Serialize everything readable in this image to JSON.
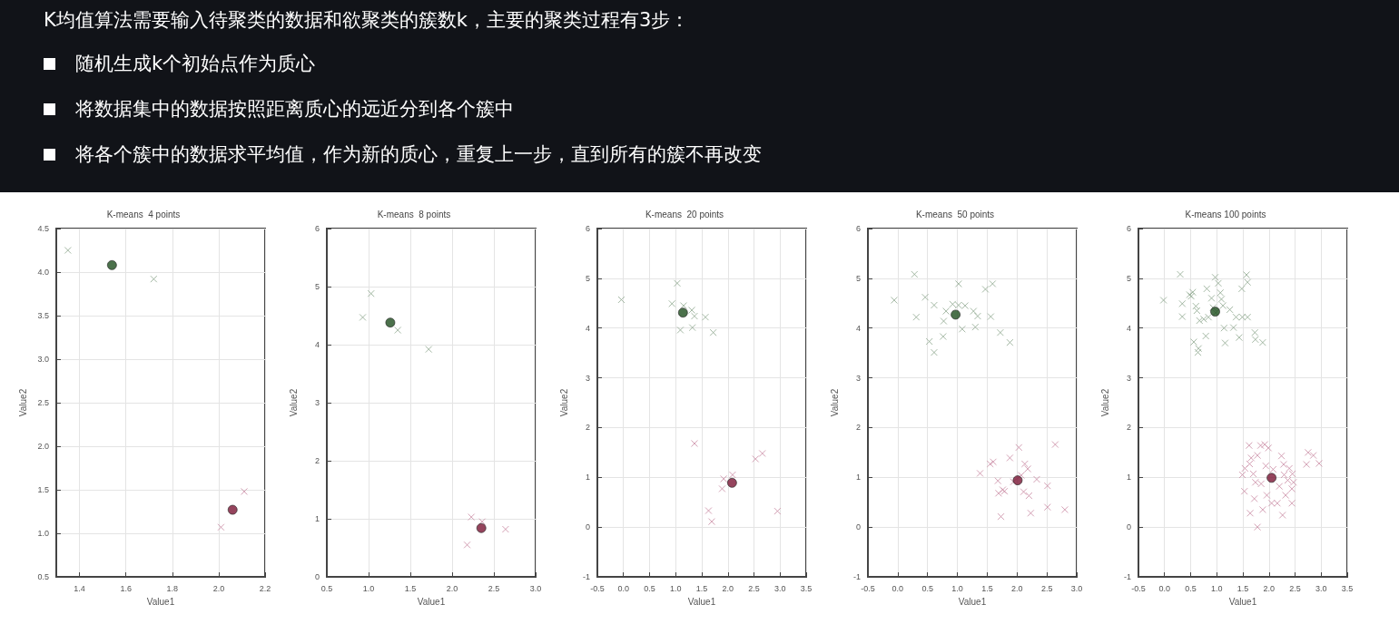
{
  "chart_data": [
    {
      "type": "other",
      "title": "K均值算法需要输入待聚类的数据和欲聚类的簇数k，主要的聚类过程有3步：",
      "annotations": [
        "随机生成k个初始点作为质心",
        "将数据集中的数据按照距离质心的远近分到各个簇中",
        "将各个簇中的数据求平均值，作为新的质心，重复上一步，直到所有的簇不再改变"
      ]
    },
    {
      "type": "scatter",
      "title": "K-means  4 points",
      "xlabel": "Value1",
      "ylabel": "Value2",
      "xlim": [
        1.3,
        2.2
      ],
      "xticks": [
        1.4,
        1.6,
        1.8,
        {
          "value": 2.0,
          "label": "2.0"
        },
        2.2
      ],
      "ylim": [
        0.5,
        4.5
      ],
      "yticks": [
        0.5,
        {
          "value": 1.0,
          "label": "1.0"
        },
        1.5,
        {
          "value": 2.0,
          "label": "2.0"
        },
        2.5,
        {
          "value": 3.0,
          "label": "3.0"
        },
        3.5,
        {
          "value": 4.0,
          "label": "4.0"
        },
        4.5
      ],
      "grid": true,
      "series": [
        {
          "color": "#8fa88f",
          "marker": "cross",
          "x": [
            1.35,
            1.72
          ],
          "values": [
            4.25,
            3.92
          ]
        },
        {
          "color": "#c98aa3",
          "marker": "cross",
          "x": [
            2.01,
            2.11
          ],
          "values": [
            1.07,
            1.48
          ]
        },
        {
          "color": "#1e4d1e",
          "marker": "circle",
          "x": [
            1.54
          ],
          "values": [
            4.08
          ]
        },
        {
          "color": "#7a1535",
          "marker": "circle",
          "x": [
            2.06
          ],
          "values": [
            1.27
          ]
        }
      ]
    },
    {
      "type": "scatter",
      "title": "K-means  8 points",
      "xlabel": "Value1",
      "ylabel": "Value2",
      "xlim": [
        0.5,
        3.0
      ],
      "xticks": [
        0.5,
        {
          "value": 1.0,
          "label": "1.0"
        },
        1.5,
        {
          "value": 2.0,
          "label": "2.0"
        },
        2.5,
        {
          "value": 3.0,
          "label": "3.0"
        }
      ],
      "ylim": [
        0,
        6
      ],
      "yticks": [
        0,
        1,
        2,
        3,
        4,
        5,
        6
      ],
      "grid": true,
      "series": [
        {
          "color": "#8fa88f",
          "marker": "cross",
          "x": [
            0.93,
            1.03,
            1.35,
            1.72
          ],
          "values": [
            4.47,
            4.88,
            4.25,
            3.92
          ]
        },
        {
          "color": "#c98aa3",
          "marker": "cross",
          "x": [
            2.23,
            2.36,
            2.18,
            2.64
          ],
          "values": [
            1.03,
            0.95,
            0.55,
            0.82
          ]
        },
        {
          "color": "#1e4d1e",
          "marker": "circle",
          "x": [
            1.26
          ],
          "values": [
            4.38
          ]
        },
        {
          "color": "#7a1535",
          "marker": "circle",
          "x": [
            2.35
          ],
          "values": [
            0.84
          ]
        }
      ]
    },
    {
      "type": "scatter",
      "title": "K-means  20 points",
      "xlabel": "Value1",
      "ylabel": "Value2",
      "xlim": [
        -0.5,
        3.5
      ],
      "xticks": [
        -0.5,
        {
          "value": 0,
          "label": "0.0"
        },
        0.5,
        {
          "value": 1.0,
          "label": "1.0"
        },
        1.5,
        {
          "value": 2.0,
          "label": "2.0"
        },
        2.5,
        {
          "value": 3.0,
          "label": "3.0"
        },
        3.5
      ],
      "ylim": [
        -1,
        6
      ],
      "yticks": [
        -1,
        0,
        1,
        2,
        3,
        4,
        5,
        6
      ],
      "grid": true,
      "series": [
        {
          "color": "#8fa88f",
          "marker": "cross",
          "x": [
            -0.04,
            1.03,
            0.93,
            1.15,
            1.31,
            1.36,
            1.57,
            1.09,
            1.32,
            1.72
          ],
          "values": [
            4.57,
            4.9,
            4.49,
            4.45,
            4.36,
            4.24,
            4.22,
            3.96,
            4.01,
            3.91
          ]
        },
        {
          "color": "#c98aa3",
          "marker": "cross",
          "x": [
            1.36,
            2.53,
            2.66,
            2.09,
            1.92,
            1.89,
            1.63,
            1.69,
            2.95
          ],
          "values": [
            1.68,
            1.37,
            1.48,
            1.05,
            0.97,
            0.77,
            0.33,
            0.11,
            0.32
          ]
        },
        {
          "color": "#1e4d1e",
          "marker": "circle",
          "x": [
            1.14
          ],
          "values": [
            4.31
          ]
        },
        {
          "color": "#7a1535",
          "marker": "circle",
          "x": [
            2.08
          ],
          "values": [
            0.89
          ]
        }
      ]
    },
    {
      "type": "scatter",
      "title": "K-means  50 points",
      "xlabel": "Value1",
      "ylabel": "Value2",
      "xlim": [
        -0.5,
        3.0
      ],
      "xticks": [
        -0.5,
        {
          "value": 0,
          "label": "0.0"
        },
        0.5,
        {
          "value": 1.0,
          "label": "1.0"
        },
        1.5,
        {
          "value": 2.0,
          "label": "2.0"
        },
        2.5,
        {
          "value": 3.0,
          "label": "3.0"
        }
      ],
      "ylim": [
        -1,
        6
      ],
      "yticks": [
        -1,
        0,
        1,
        2,
        3,
        4,
        5,
        6
      ],
      "grid": true,
      "series": [
        {
          "color": "#8fa88f",
          "marker": "cross",
          "x": [
            -0.06,
            0.28,
            0.31,
            0.46,
            0.61,
            0.53,
            0.61,
            0.76,
            0.77,
            0.81,
            0.92,
            1.02,
            1.08,
            1.13,
            1.27,
            1.34,
            1.3,
            1.47,
            1.59,
            1.56,
            1.72,
            1.88,
            1.02
          ],
          "values": [
            4.56,
            5.08,
            4.22,
            4.62,
            4.46,
            3.73,
            3.51,
            3.83,
            4.14,
            4.34,
            4.48,
            4.89,
            3.98,
            4.45,
            4.34,
            4.24,
            4.02,
            4.78,
            4.89,
            4.23,
            3.91,
            3.71,
            4.46
          ]
        },
        {
          "color": "#c98aa3",
          "marker": "cross",
          "x": [
            1.38,
            1.55,
            1.6,
            1.88,
            2.03,
            2.64,
            2.13,
            2.18,
            1.68,
            1.69,
            1.76,
            1.79,
            1.94,
            2.11,
            2.2,
            2.33,
            2.51,
            2.51,
            2.23,
            1.73,
            2.8,
            2.07
          ],
          "values": [
            1.08,
            1.27,
            1.31,
            1.39,
            1.6,
            1.66,
            1.27,
            1.17,
            0.93,
            0.68,
            0.75,
            0.72,
            0.91,
            0.71,
            0.63,
            0.96,
            0.83,
            0.4,
            0.28,
            0.21,
            0.35,
            1.04
          ]
        },
        {
          "color": "#1e4d1e",
          "marker": "circle",
          "x": [
            0.97
          ],
          "values": [
            4.27
          ]
        },
        {
          "color": "#7a1535",
          "marker": "circle",
          "x": [
            2.01
          ],
          "values": [
            0.94
          ]
        }
      ]
    },
    {
      "type": "scatter",
      "title": "K-means 100 points",
      "xlabel": "Value1",
      "ylabel": "Value2",
      "xlim": [
        -0.5,
        3.5
      ],
      "xticks": [
        -0.5,
        {
          "value": 0,
          "label": "0.0"
        },
        0.5,
        {
          "value": 1.0,
          "label": "1.0"
        },
        1.5,
        {
          "value": 2.0,
          "label": "2.0"
        },
        2.5,
        {
          "value": 3.0,
          "label": "3.0"
        },
        3.5
      ],
      "ylim": [
        -1,
        6
      ],
      "yticks": [
        -1,
        0,
        1,
        2,
        3,
        4,
        5,
        6
      ],
      "grid": true,
      "series": [
        {
          "color": "#8fa88f",
          "marker": "cross",
          "x": [
            -0.02,
            0.3,
            0.34,
            0.34,
            0.48,
            0.54,
            0.51,
            0.6,
            0.62,
            0.56,
            0.65,
            0.64,
            0.67,
            0.75,
            0.79,
            0.81,
            0.84,
            0.97,
            0.93,
            1.03,
            1.07,
            1.09,
            1.12,
            1.14,
            1.16,
            1.25,
            1.32,
            1.37,
            1.43,
            1.49,
            1.48,
            1.57,
            1.59,
            1.59,
            1.73,
            1.74,
            1.88,
            0.9,
            0.98
          ],
          "values": [
            4.56,
            5.08,
            4.49,
            4.23,
            4.67,
            4.72,
            4.64,
            4.44,
            4.35,
            3.72,
            3.59,
            3.51,
            4.15,
            4.18,
            3.84,
            4.79,
            4.22,
            5.02,
            4.41,
            4.9,
            4.71,
            4.58,
            4.45,
            4.0,
            3.7,
            4.37,
            4.01,
            4.22,
            3.81,
            4.22,
            4.79,
            5.07,
            4.92,
            4.22,
            3.91,
            3.77,
            3.71,
            4.6,
            4.31
          ]
        },
        {
          "color": "#c98aa3",
          "marker": "cross",
          "x": [
            1.49,
            1.54,
            1.53,
            1.62,
            1.63,
            1.66,
            1.64,
            1.7,
            1.72,
            1.74,
            1.78,
            1.84,
            1.85,
            1.78,
            1.92,
            1.94,
            1.88,
            1.96,
            1.99,
            2.05,
            2.08,
            2.16,
            2.2,
            2.24,
            2.26,
            2.28,
            2.29,
            2.32,
            2.39,
            2.36,
            2.44,
            2.45,
            2.47,
            2.44,
            2.75,
            2.72,
            2.85,
            2.96
          ],
          "values": [
            1.05,
            1.18,
            0.72,
            1.64,
            1.27,
            1.39,
            0.28,
            1.07,
            0.57,
            0.9,
            1.44,
            1.64,
            0.87,
            0.0,
            1.66,
            1.23,
            0.35,
            0.64,
            1.59,
            0.48,
            1.16,
            0.48,
            0.82,
            1.43,
            0.24,
            1.26,
            1.05,
            0.64,
            1.18,
            0.94,
            0.48,
            1.07,
            0.9,
            0.77,
            1.5,
            1.26,
            1.44,
            1.28
          ]
        },
        {
          "color": "#1e4d1e",
          "marker": "circle",
          "x": [
            0.97
          ],
          "values": [
            4.33
          ]
        },
        {
          "color": "#7a1535",
          "marker": "circle",
          "x": [
            2.05
          ],
          "values": [
            0.99
          ]
        }
      ]
    }
  ]
}
